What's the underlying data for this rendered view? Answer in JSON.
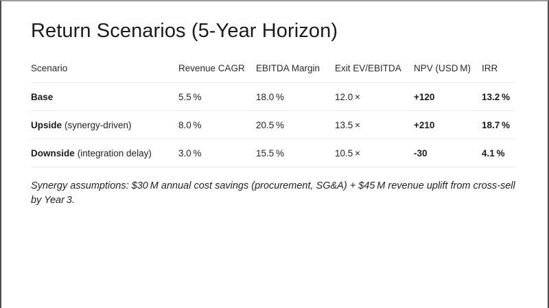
{
  "slide": {
    "title": "Return Scenarios (5-Year Horizon)",
    "footnote": "Synergy assumptions: $30 M annual cost savings (procurement, SG&A) + $45 M revenue uplift from cross-sell by Year 3."
  },
  "table": {
    "columns": [
      "Scenario",
      "Revenue CAGR",
      "EBITDA Margin",
      "Exit EV/EBITDA",
      "NPV (USD M)",
      "IRR"
    ],
    "rows": [
      {
        "scenario": "Base",
        "scenario_note": "",
        "revenue_cagr": "5.5 %",
        "ebitda_margin": "18.0 %",
        "exit_ev_ebitda": "12.0 ×",
        "npv": "+120",
        "irr": "13.2 %"
      },
      {
        "scenario": "Upside",
        "scenario_note": "(synergy-driven)",
        "revenue_cagr": "8.0 %",
        "ebitda_margin": "20.5 %",
        "exit_ev_ebitda": "13.5 ×",
        "npv": "+210",
        "irr": "18.7 %"
      },
      {
        "scenario": "Downside",
        "scenario_note": "(integration delay)",
        "revenue_cagr": "3.0 %",
        "ebitda_margin": "15.5 %",
        "exit_ev_ebitda": "10.5 ×",
        "npv": "-30",
        "irr": "4.1 %"
      }
    ]
  },
  "colors": {
    "text": "#1e1e1e",
    "divider": "#ececec",
    "frame_side": "#4d4d4d",
    "frame_top": "#9c9c9c",
    "background": "#ffffff"
  }
}
